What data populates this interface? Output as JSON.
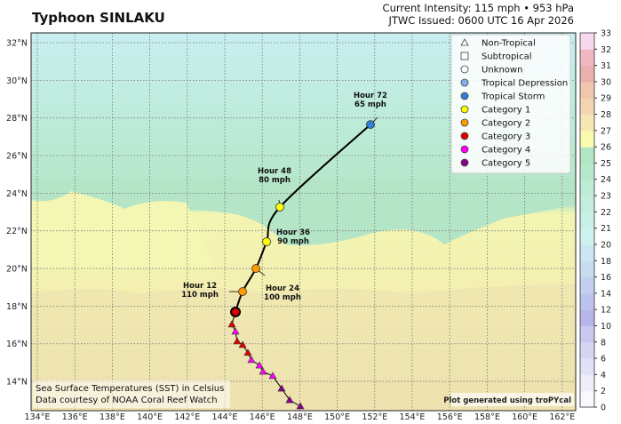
{
  "header": {
    "title": "Typhoon SINLAKU",
    "intensity": "Current Intensity: 115 mph • 953 hPa",
    "issued": "JTWC Issued: 0600 UTC 16 Apr 2026"
  },
  "map": {
    "lon_range": [
      133.3,
      162.7
    ],
    "lat_range": [
      12.6,
      32.8
    ],
    "lon_ticks": [
      134,
      136,
      138,
      140,
      142,
      144,
      146,
      148,
      150,
      152,
      154,
      156,
      158,
      160,
      162
    ],
    "lat_ticks": [
      14,
      16,
      18,
      20,
      22,
      24,
      26,
      28,
      30,
      32
    ],
    "gridlines": true,
    "credit_line1": "Sea Surface Temperatures (SST) in Celsius",
    "credit_line2": "Data courtesy of NOAA Coral Reef Watch",
    "generated": "Plot generated using troPYcal"
  },
  "legend": {
    "placement": "top-right",
    "items": [
      {
        "label": "Non-Tropical",
        "marker": "triangle",
        "color": "#ffffff"
      },
      {
        "label": "Subtropical",
        "marker": "square",
        "color": "#ffffff"
      },
      {
        "label": "Unknown",
        "marker": "circle",
        "color": "#ffffff"
      },
      {
        "label": "Tropical Depression",
        "marker": "circle",
        "color": "#7fb2e6"
      },
      {
        "label": "Tropical Storm",
        "marker": "circle",
        "color": "#2f7fd6"
      },
      {
        "label": "Category 1",
        "marker": "circle",
        "color": "#ffff00"
      },
      {
        "label": "Category 2",
        "marker": "circle",
        "color": "#ff9a00"
      },
      {
        "label": "Category 3",
        "marker": "circle",
        "color": "#e00000"
      },
      {
        "label": "Category 4",
        "marker": "circle",
        "color": "#ff00ff"
      },
      {
        "label": "Category 5",
        "marker": "circle",
        "color": "#8b008b"
      }
    ]
  },
  "colorbar": {
    "ticks": [
      0,
      2,
      4,
      6,
      8,
      10,
      12,
      14,
      16,
      18,
      20,
      21,
      22,
      23,
      24,
      25,
      26,
      27,
      28,
      29,
      30,
      31,
      32,
      33
    ],
    "colors": [
      "#f8f8fd",
      "#eeeefa",
      "#e2e2f7",
      "#d6d6f3",
      "#c9c9ef",
      "#b6b6eb",
      "#bcc3ec",
      "#c2cfee",
      "#c8dcf0",
      "#cbe7f1",
      "#cef2f0",
      "#c8f0e6",
      "#c3eddd",
      "#bdebd4",
      "#b7e8cb",
      "#b2e5c2",
      "#fbfbb0",
      "#f7e7b5",
      "#f4d5b3",
      "#efc6ae",
      "#eab0ae",
      "#efb7c1",
      "#f7d9ef"
    ]
  },
  "track": {
    "past": [
      {
        "lon": 148.03,
        "lat": 12.68,
        "color": "#8b008b"
      },
      {
        "lon": 147.46,
        "lat": 13.01,
        "color": "#8b008b"
      },
      {
        "lon": 147.03,
        "lat": 13.62,
        "color": "#8b008b"
      },
      {
        "lon": 146.56,
        "lat": 14.29,
        "color": "#ff00ff"
      },
      {
        "lon": 146.04,
        "lat": 14.52,
        "color": "#ff00ff"
      },
      {
        "lon": 145.85,
        "lat": 14.85,
        "color": "#ff00ff"
      },
      {
        "lon": 145.42,
        "lat": 15.14,
        "color": "#ff00ff"
      },
      {
        "lon": 145.23,
        "lat": 15.52,
        "color": "#e00000"
      },
      {
        "lon": 144.95,
        "lat": 15.94,
        "color": "#e00000"
      },
      {
        "lon": 144.66,
        "lat": 16.13,
        "color": "#e00000"
      },
      {
        "lon": 144.57,
        "lat": 16.65,
        "color": "#ff00ff"
      },
      {
        "lon": 144.38,
        "lat": 17.03,
        "color": "#e00000"
      }
    ],
    "current": {
      "lon": 144.57,
      "lat": 17.69,
      "color": "#e00000"
    },
    "forecast": [
      {
        "hour": "Hour 12",
        "wind": "110 mph",
        "lon": 144.95,
        "lat": 18.77,
        "color": "#ff9a00",
        "side": "left"
      },
      {
        "hour": "Hour 24",
        "wind": "100 mph",
        "lon": 145.66,
        "lat": 20.0,
        "color": "#ff9a00",
        "side": "below-right"
      },
      {
        "hour": "Hour 36",
        "wind": "90 mph",
        "lon": 146.23,
        "lat": 21.42,
        "color": "#ffff00",
        "side": "right"
      },
      {
        "hour": "Hour 48",
        "wind": "80 mph",
        "lon": 146.94,
        "lat": 23.26,
        "color": "#ffff00",
        "side": "above-left"
      },
      {
        "hour": "Hour 72",
        "wind": "65 mph",
        "lon": 151.77,
        "lat": 27.65,
        "color": "#2f7fd6",
        "side": "above"
      }
    ]
  }
}
